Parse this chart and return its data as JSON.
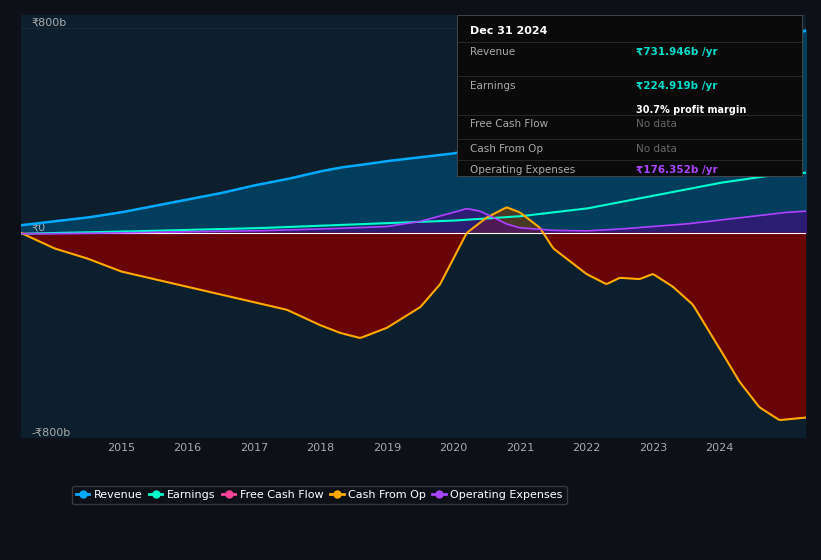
{
  "bg_color": "#0d1117",
  "plot_bg_color": "#0d1f2d",
  "title_box": {
    "date": "Dec 31 2024",
    "revenue_label": "Revenue",
    "revenue_value": "₹731.946b /yr",
    "earnings_label": "Earnings",
    "earnings_value": "₹224.919b /yr",
    "profit_margin": "30.7% profit margin",
    "fcf_label": "Free Cash Flow",
    "fcf_value": "No data",
    "cashop_label": "Cash From Op",
    "cashop_value": "No data",
    "opex_label": "Operating Expenses",
    "opex_value": "₹176.352b /yr"
  },
  "revenue_color": "#00aaff",
  "earnings_color": "#00ffcc",
  "fcf_color": "#ff4499",
  "cashop_color": "#ffaa00",
  "opex_color": "#aa44ff",
  "zero_line_color": "#ffffff",
  "grid_color": "#1e3040",
  "ylim": [
    -800,
    850
  ],
  "yticklabels": [
    "-₹800b",
    "₹0",
    "₹800b"
  ],
  "legend_items": [
    {
      "label": "Revenue",
      "color": "#00aaff"
    },
    {
      "label": "Earnings",
      "color": "#00ffcc"
    },
    {
      "label": "Free Cash Flow",
      "color": "#ff4499"
    },
    {
      "label": "Cash From Op",
      "color": "#ffaa00"
    },
    {
      "label": "Operating Expenses",
      "color": "#aa44ff"
    }
  ]
}
